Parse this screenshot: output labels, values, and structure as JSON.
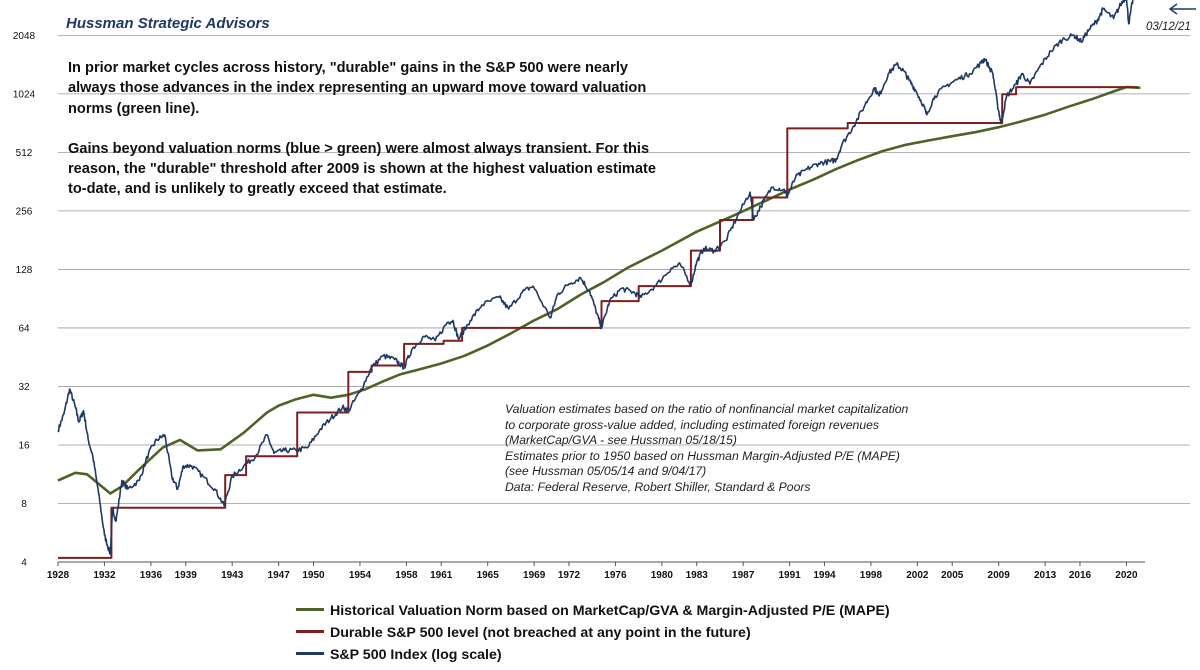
{
  "header": {
    "brand": "Hussman Strategic Advisors",
    "end_date_label": "03/12/21"
  },
  "notes": {
    "paragraph_1": "In prior market cycles across history, \"durable\" gains in the S&P 500 were nearly always those advances in the index representing an upward move toward valuation norms (green line).",
    "paragraph_2": "Gains beyond valuation norms (blue > green) were almost always transient. For this reason, the \"durable\" threshold after 2009 is shown at the highest valuation estimate to-date, and is unlikely to greatly exceed that estimate.",
    "source_lines": [
      "Valuation estimates based on the ratio of nonfinancial  market capitalization",
      "to corporate gross-value added, including estimated foreign revenues",
      "(MarketCap/GVA  - see Hussman 05/18/15)",
      "Estimates prior to 1950 based on Hussman Margin-Adjusted P/E (MAPE)",
      "(see Hussman 05/05/14 and 9/04/17)",
      "Data: Federal Reserve, Robert Shiller, Standard  & Poors"
    ]
  },
  "colors": {
    "sp500": "#1f3864",
    "norm": "#4f6228",
    "durable": "#7b1f1f",
    "grid": "#9a9a9a"
  },
  "chart_data": {
    "type": "line",
    "y_scale": "log2",
    "ylim": [
      4,
      2900
    ],
    "xlim": [
      1928,
      2021.6
    ],
    "y_ticks": [
      4,
      8,
      16,
      32,
      64,
      128,
      256,
      512,
      1024,
      2048
    ],
    "x_ticks": [
      1928,
      1932,
      1936,
      1939,
      1943,
      1947,
      1950,
      1954,
      1958,
      1961,
      1965,
      1969,
      1972,
      1976,
      1980,
      1983,
      1987,
      1991,
      1994,
      1998,
      2002,
      2005,
      2009,
      2013,
      2016,
      2020
    ],
    "legend_position": "bottom",
    "series": [
      {
        "key": "norm",
        "name": "Historical Valuation Norm based on MarketCap/GVA & Margin-Adjusted P/E (MAPE)",
        "x": [
          1928.0,
          1929.5,
          1930.5,
          1932.5,
          1933.5,
          1935.0,
          1937.0,
          1938.5,
          1940.0,
          1942.0,
          1944.0,
          1946.0,
          1947.0,
          1948.5,
          1950.0,
          1951.5,
          1953.0,
          1954.5,
          1956.0,
          1957.5,
          1959.0,
          1961.0,
          1963.0,
          1965.0,
          1967.0,
          1969.0,
          1971.0,
          1973.0,
          1975.0,
          1977.0,
          1980.0,
          1983.0,
          1986.0,
          1989.0,
          1991.0,
          1993.0,
          1995.0,
          1997.0,
          1999.0,
          2001.0,
          2003.0,
          2005.0,
          2007.0,
          2009.0,
          2011.0,
          2013.0,
          2015.0,
          2017.0,
          2019.0,
          2020.0,
          2021.2
        ],
        "values": [
          10.5,
          11.5,
          11.3,
          9.0,
          9.8,
          12.0,
          15.5,
          17.0,
          15.0,
          15.2,
          18.5,
          23.5,
          25.5,
          27.5,
          29.0,
          28.0,
          29.0,
          31.0,
          34.0,
          37.0,
          39.0,
          42.0,
          46.0,
          52.0,
          60.0,
          70.0,
          80.0,
          95.0,
          110.0,
          130.0,
          160.0,
          200.0,
          240.0,
          290.0,
          330.0,
          370.0,
          420.0,
          470.0,
          520.0,
          560.0,
          590.0,
          620.0,
          650.0,
          690.0,
          740.0,
          800.0,
          880.0,
          960.0,
          1060.0,
          1110.0,
          1100.0
        ]
      },
      {
        "key": "durable",
        "name": "Durable S&P 500 level (not breached at any point in the future)",
        "x": [
          1928.0,
          1932.6,
          1932.6,
          1942.4,
          1942.4,
          1944.2,
          1944.2,
          1948.6,
          1948.6,
          1953.0,
          1953.0,
          1955.0,
          1955.0,
          1957.8,
          1957.8,
          1961.2,
          1961.2,
          1962.8,
          1962.8,
          1974.8,
          1974.8,
          1978.0,
          1978.0,
          1982.5,
          1982.5,
          1985.0,
          1985.0,
          1987.8,
          1987.8,
          1990.8,
          1990.8,
          1996.0,
          1996.0,
          2009.3,
          2009.3,
          2010.5,
          2010.5,
          2021.0
        ],
        "values": [
          4.2,
          4.2,
          7.6,
          7.6,
          11.2,
          11.2,
          14.0,
          14.0,
          23.5,
          23.5,
          38.0,
          38.0,
          41.0,
          41.0,
          53.0,
          53.0,
          55.0,
          55.0,
          64.0,
          64.0,
          88.0,
          88.0,
          105.0,
          105.0,
          160.0,
          160.0,
          230.0,
          230.0,
          300.0,
          300.0,
          680.0,
          680.0,
          725.0,
          725.0,
          1020.0,
          1020.0,
          1110.0,
          1110.0
        ]
      },
      {
        "key": "sp500",
        "name": "S&P 500 Index (log scale)",
        "x": [
          1928.0,
          1928.5,
          1929.0,
          1929.5,
          1929.8,
          1930.2,
          1930.6,
          1931.0,
          1931.5,
          1932.0,
          1932.5,
          1932.7,
          1933.0,
          1933.5,
          1934.0,
          1935.0,
          1935.8,
          1936.5,
          1937.2,
          1937.8,
          1938.3,
          1938.8,
          1939.5,
          1940.5,
          1941.5,
          1942.3,
          1943.0,
          1944.0,
          1945.0,
          1946.0,
          1946.6,
          1947.5,
          1948.5,
          1949.5,
          1950.5,
          1951.5,
          1952.5,
          1953.0,
          1954.0,
          1955.0,
          1956.0,
          1957.0,
          1957.8,
          1958.5,
          1959.5,
          1960.5,
          1961.5,
          1962.0,
          1962.5,
          1963.5,
          1964.5,
          1966.0,
          1966.8,
          1968.0,
          1968.9,
          1970.4,
          1971.0,
          1972.0,
          1973.0,
          1973.8,
          1974.4,
          1974.8,
          1975.5,
          1976.5,
          1977.5,
          1978.2,
          1979.5,
          1980.8,
          1981.6,
          1982.5,
          1983.0,
          1983.6,
          1984.5,
          1985.5,
          1986.5,
          1987.6,
          1987.9,
          1988.5,
          1989.5,
          1990.5,
          1990.8,
          1991.5,
          1992.5,
          1993.5,
          1994.5,
          1995.0,
          1995.5,
          1996.5,
          1997.5,
          1998.3,
          1998.7,
          1999.5,
          2000.2,
          2000.8,
          2001.3,
          2001.8,
          2002.5,
          2002.8,
          2003.5,
          2004.5,
          2005.5,
          2006.5,
          2007.5,
          2007.8,
          2008.5,
          2008.9,
          2009.2,
          2009.7,
          2010.5,
          2011.0,
          2011.7,
          2012.5,
          2013.5,
          2014.5,
          2015.5,
          2016.1,
          2016.8,
          2017.5,
          2018.0,
          2018.9,
          2019.5,
          2020.0,
          2020.2,
          2020.6,
          2021.2
        ],
        "values": [
          19.0,
          23.0,
          31.0,
          25.0,
          21.0,
          24.0,
          17.0,
          14.0,
          9.0,
          5.5,
          4.4,
          7.5,
          6.5,
          10.5,
          9.5,
          10.5,
          14.5,
          17.0,
          18.0,
          11.0,
          9.5,
          12.5,
          12.5,
          11.0,
          9.5,
          7.8,
          11.0,
          12.5,
          14.0,
          18.0,
          14.5,
          15.0,
          15.0,
          15.5,
          19.0,
          22.0,
          25.0,
          24.0,
          30.0,
          40.0,
          46.0,
          44.0,
          40.0,
          50.0,
          58.0,
          55.0,
          68.0,
          70.0,
          56.0,
          70.0,
          84.0,
          92.0,
          80.0,
          98.0,
          105.0,
          72.0,
          95.0,
          108.0,
          116.0,
          98.0,
          76.0,
          64.0,
          88.0,
          102.0,
          98.0,
          92.0,
          106.0,
          130.0,
          135.0,
          107.0,
          140.0,
          164.0,
          160.0,
          180.0,
          240.0,
          320.0,
          230.0,
          270.0,
          340.0,
          330.0,
          305.0,
          380.0,
          420.0,
          450.0,
          460.0,
          470.0,
          560.0,
          700.0,
          900.0,
          1100.0,
          1000.0,
          1300.0,
          1450.0,
          1350.0,
          1200.0,
          1080.0,
          900.0,
          800.0,
          1000.0,
          1130.0,
          1220.0,
          1300.0,
          1480.0,
          1550.0,
          1300.0,
          900.0,
          720.0,
          1000.0,
          1150.0,
          1300.0,
          1150.0,
          1400.0,
          1700.0,
          1950.0,
          2050.0,
          1900.0,
          2200.0,
          2450.0,
          2800.0,
          2500.0,
          2950.0,
          3250.0,
          2350.0,
          3250.0,
          3950.0
        ]
      }
    ]
  }
}
